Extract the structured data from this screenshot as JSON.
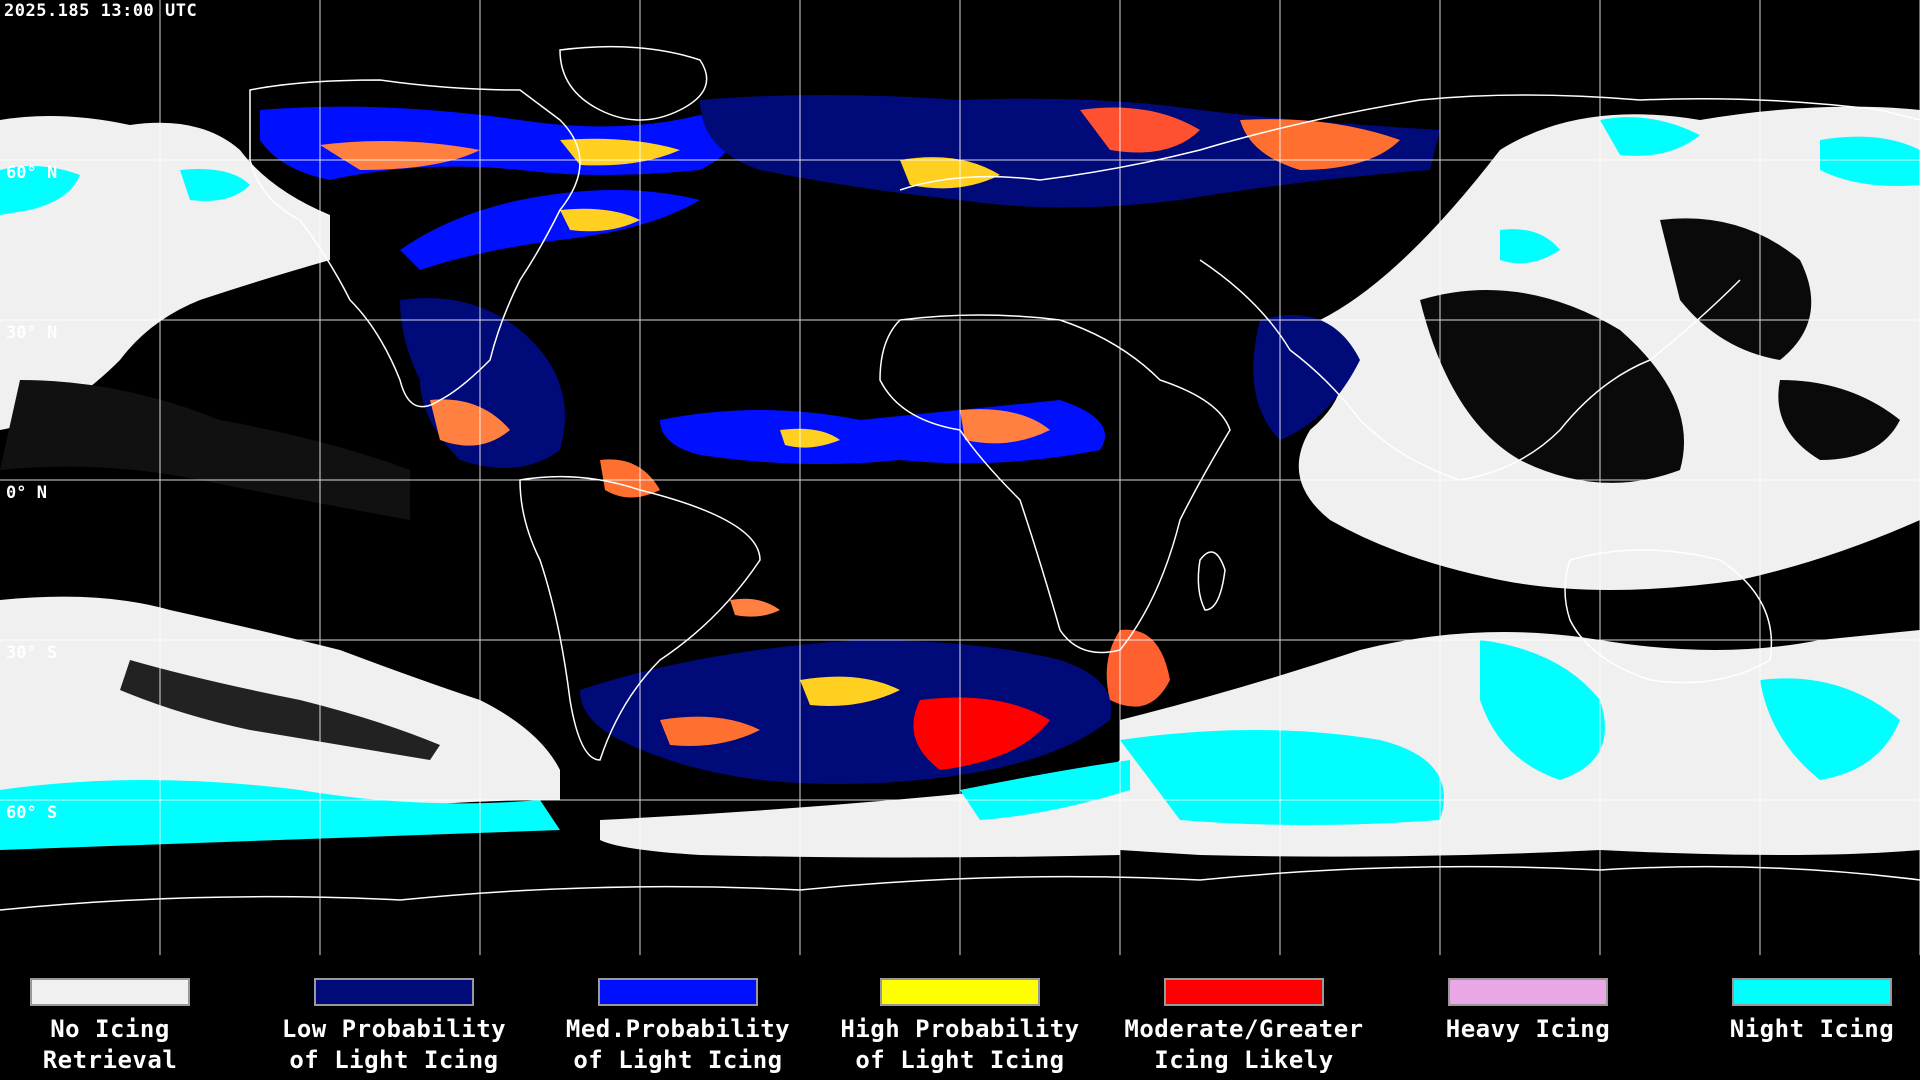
{
  "header": {
    "timestamp": "2025.185 13:00 UTC"
  },
  "latitude_labels": [
    {
      "label": "60° N"
    },
    {
      "label": "30° N"
    },
    {
      "label": "0° N"
    },
    {
      "label": "30° S"
    },
    {
      "label": "60° S"
    }
  ],
  "legend": [
    {
      "line1": "No Icing",
      "line2": "Retrieval",
      "color": "#f0f0f0"
    },
    {
      "line1": "Low Probability",
      "line2": "of Light Icing",
      "color": "#000a78"
    },
    {
      "line1": "Med.Probability",
      "line2": "of Light Icing",
      "color": "#0010ff"
    },
    {
      "line1": "High Probability",
      "line2": "of Light Icing",
      "color": "#ffff00"
    },
    {
      "line1": "Moderate/Greater",
      "line2": "Icing Likely",
      "color": "#ff0000"
    },
    {
      "line1": "Heavy Icing",
      "line2": "",
      "color": "#e8a8e8"
    },
    {
      "line1": "Night Icing",
      "line2": "",
      "color": "#00ffff"
    }
  ],
  "map": {
    "background_color": "#000000",
    "grid_color": "#ffffff",
    "coastline_color": "#ffffff"
  }
}
